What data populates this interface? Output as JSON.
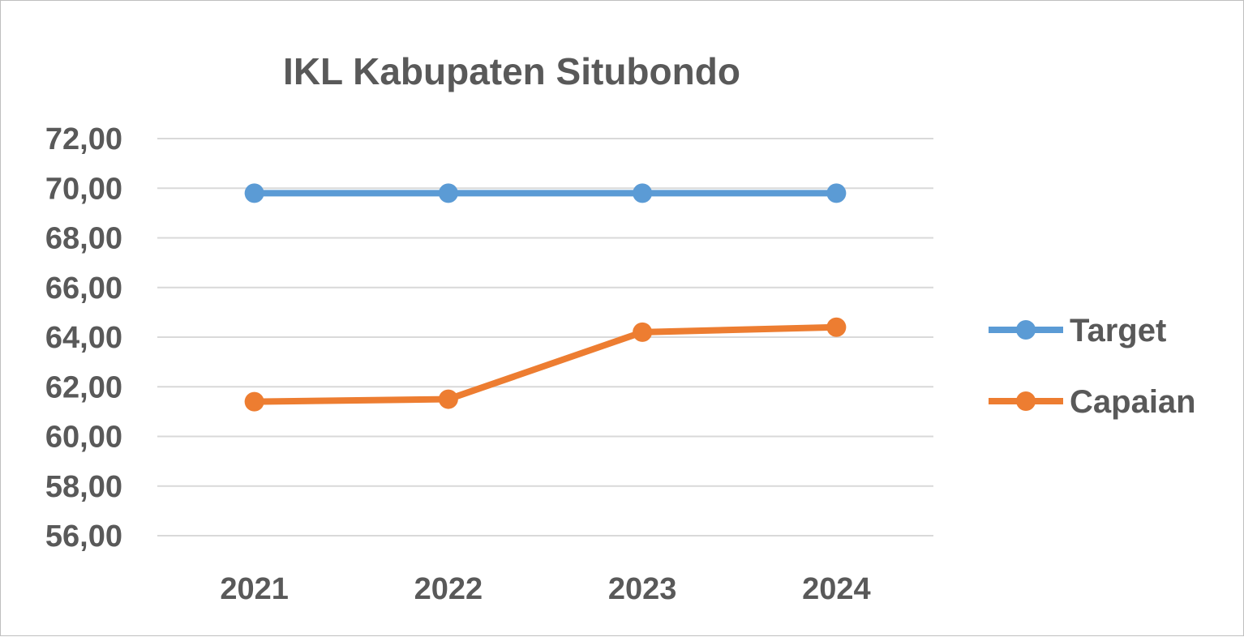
{
  "chart_data": {
    "type": "line",
    "title": "IKL Kabupaten Situbondo",
    "xlabel": "",
    "ylabel": "",
    "categories": [
      "2021",
      "2022",
      "2023",
      "2024"
    ],
    "ylim": [
      56,
      72
    ],
    "yticks": [
      "56,00",
      "58,00",
      "60,00",
      "62,00",
      "64,00",
      "66,00",
      "68,00",
      "70,00",
      "72,00"
    ],
    "grid": true,
    "legend_position": "right",
    "series": [
      {
        "name": "Target",
        "color": "#5b9bd5",
        "values": [
          69.8,
          69.8,
          69.8,
          69.8
        ]
      },
      {
        "name": "Capaian",
        "color": "#ed7d31",
        "values": [
          61.4,
          61.5,
          64.2,
          64.4
        ]
      }
    ]
  }
}
